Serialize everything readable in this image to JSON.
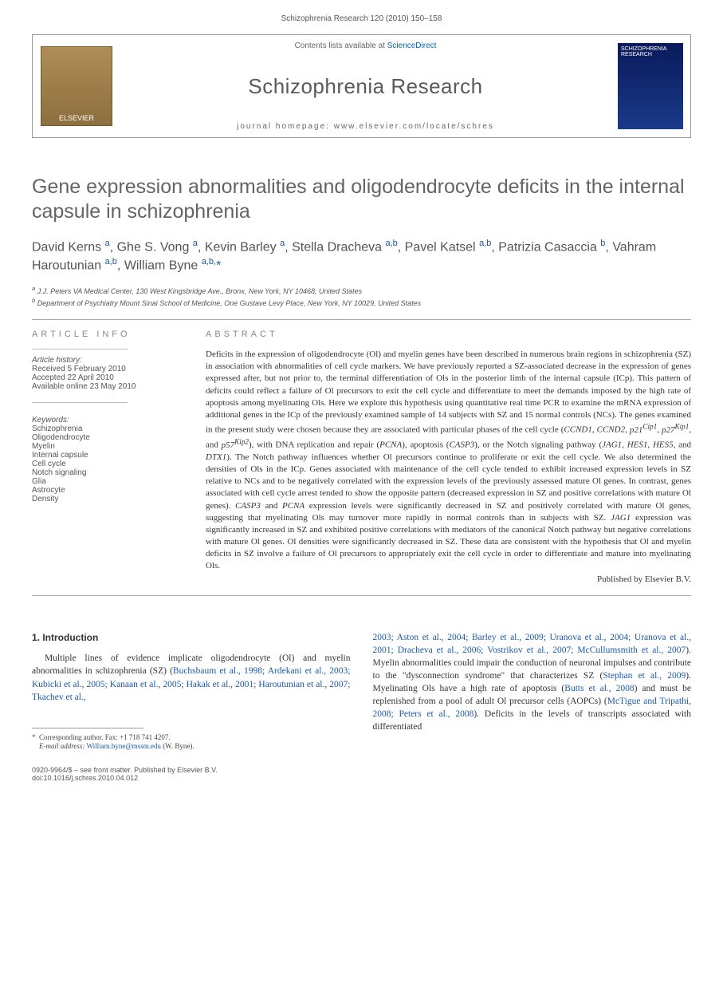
{
  "running_head": "Schizophrenia Research 120 (2010) 150–158",
  "header": {
    "contents_prefix": "Contents lists available at ",
    "contents_link": "ScienceDirect",
    "journal": "Schizophrenia Research",
    "homepage_prefix": "journal homepage: ",
    "homepage_url": "www.elsevier.com/locate/schres",
    "publisher_logo_label": "ELSEVIER",
    "cover_label": "SCHIZOPHRENIA RESEARCH"
  },
  "title": "Gene expression abnormalities and oligodendrocyte deficits in the internal capsule in schizophrenia",
  "authors_html": "David Kerns <sup>a</sup>, Ghe S. Vong <sup>a</sup>, Kevin Barley <sup>a</sup>, Stella Dracheva <sup>a,b</sup>, Pavel Katsel <sup>a,b</sup>, Patrizia Casaccia <sup>b</sup>, Vahram Haroutunian <sup>a,b</sup>, William Byne <sup>a,b,</sup><span class='star'>*</span>",
  "affiliations": {
    "a": "J.J. Peters VA Medical Center, 130 West Kingsbridge Ave., Bronx, New York, NY 10468, United States",
    "b": "Department of Psychiatry Mount Sinai School of Medicine, One Gustave Levy Place, New York, NY 10029, United States"
  },
  "article_info": {
    "heading": "ARTICLE INFO",
    "history_label": "Article history:",
    "received": "Received 5 February 2010",
    "accepted": "Accepted 22 April 2010",
    "online": "Available online 23 May 2010",
    "keywords_label": "Keywords:",
    "keywords": [
      "Schizophrenia",
      "Oligodendrocyte",
      "Myelin",
      "Internal capsule",
      "Cell cycle",
      "Notch signaling",
      "Glia",
      "Astrocyte",
      "Density"
    ]
  },
  "abstract": {
    "heading": "ABSTRACT",
    "text": "Deficits in the expression of oligodendrocyte (Ol) and myelin genes have been described in numerous brain regions in schizophrenia (SZ) in association with abnormalities of cell cycle markers. We have previously reported a SZ-associated decrease in the expression of genes expressed after, but not prior to, the terminal differentiation of Ols in the posterior limb of the internal capsule (ICp). This pattern of deficits could reflect a failure of Ol precursors to exit the cell cycle and differentiate to meet the demands imposed by the high rate of apoptosis among myelinating Ols. Here we explore this hypothesis using quantitative real time PCR to examine the mRNA expression of additional genes in the ICp of the previously examined sample of 14 subjects with SZ and 15 normal controls (NCs). The genes examined in the present study were chosen because they are associated with particular phases of the cell cycle (CCND1, CCND2, p21Cip1, p27Kip1, and p57Kip2), with DNA replication and repair (PCNA), apoptosis (CASP3), or the Notch signaling pathway (JAG1, HES1, HES5, and DTX1). The Notch pathway influences whether Ol precursors continue to proliferate or exit the cell cycle. We also determined the densities of Ols in the ICp. Genes associated with maintenance of the cell cycle tended to exhibit increased expression levels in SZ relative to NCs and to be negatively correlated with the expression levels of the previously assessed mature Ol genes. In contrast, genes associated with cell cycle arrest tended to show the opposite pattern (decreased expression in SZ and positive correlations with mature Ol genes). CASP3 and PCNA expression levels were significantly decreased in SZ and positively correlated with mature Ol genes, suggesting that myelinating Ols may turnover more rapidly in normal controls than in subjects with SZ. JAG1 expression was significantly increased in SZ and exhibited positive correlations with mediators of the canonical Notch pathway but negative correlations with mature Ol genes. Ol densities were significantly decreased in SZ. These data are consistent with the hypothesis that Ol and myelin deficits in SZ involve a failure of Ol precursors to appropriately exit the cell cycle in order to differentiate and mature into myelinating Ols.",
    "published_by": "Published by Elsevier B.V."
  },
  "intro": {
    "heading": "1. Introduction",
    "col1": "Multiple lines of evidence implicate oligodendrocyte (Ol) and myelin abnormalities in schizophrenia (SZ) (",
    "col1_cite": "Buchsbaum et al., 1998; Ardekani et al., 2003; Kubicki et al., 2005; Kanaan et al., 2005; Hakak et al., 2001; Haroutunian et al., 2007; Tkachev et al.,",
    "col2_cite1": "2003; Aston et al., 2004; Barley et al., 2009; Uranova et al., 2004; Uranova et al., 2001; Dracheva et al., 2006; Vostrikov et al., 2007; McCullumsmith et al., 2007",
    "col2_a": "). Myelin abnormalities could impair the conduction of neuronal impulses and contribute to the \"dysconnection syndrome\" that characterizes SZ (",
    "col2_cite2": "Stephan et al., 2009",
    "col2_b": "). Myelinating Ols have a high rate of apoptosis (",
    "col2_cite3": "Butts et al., 2008",
    "col2_c": ") and must be replenished from a pool of adult Ol precursor cells (AOPCs) (",
    "col2_cite4": "McTigue and Tripathi, 2008; Peters et al., 2008",
    "col2_d": "). Deficits in the levels of transcripts associated with differentiated"
  },
  "footnote": {
    "corr_label": "Corresponding author. Fax: +1 718 741 4207.",
    "email_label": "E-mail address:",
    "email": "William.byne@mssm.edu",
    "email_who": "(W. Byne)."
  },
  "footer": {
    "line1": "0920-9964/$ – see front matter. Published by Elsevier B.V.",
    "line2": "doi:10.1016/j.schres.2010.04.012"
  },
  "colors": {
    "link": "#1a5aa8",
    "heading_gray": "#646464",
    "text": "#333333",
    "rule": "#aaaaaa"
  }
}
